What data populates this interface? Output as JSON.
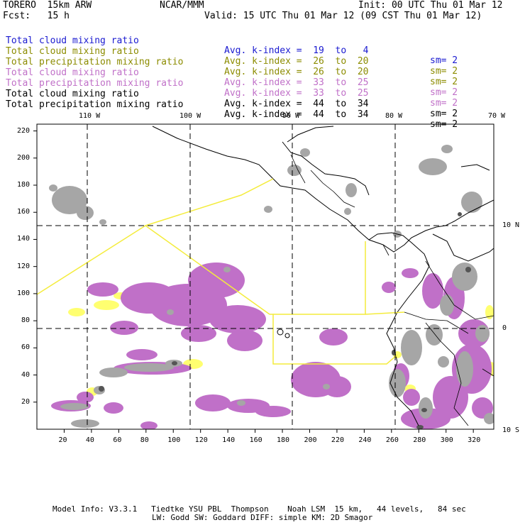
{
  "header": {
    "model": "TORERO  15km ARW",
    "center": "NCAR/MMM",
    "init": "Init: 00 UTC Thu 01 Mar 12",
    "fcst": "Fcst:   15 h",
    "valid": "Valid: 15 UTC Thu 01 Mar 12 (09 CST Thu 01 Mar 12)"
  },
  "legend": [
    {
      "field": "Total cloud mixing ratio",
      "index": "Avg. k-index =  19  to   4",
      "sm": "sm= 2",
      "color": "#1a1ad0"
    },
    {
      "field": "Total cloud mixing ratio",
      "index": "Avg. k-index =  26  to  20",
      "sm": "sm= 2",
      "color": "#8c8c00"
    },
    {
      "field": "Total precipitation mixing ratio",
      "index": "Avg. k-index =  26  to  20",
      "sm": "sm= 2",
      "color": "#8c8c00"
    },
    {
      "field": "Total cloud mixing ratio",
      "index": "Avg. k-index =  33  to  25",
      "sm": "sm= 2",
      "color": "#c070c8"
    },
    {
      "field": "Total precipitation mixing ratio",
      "index": "Avg. k-index =  33  to  25",
      "sm": "sm= 2",
      "color": "#c070c8"
    },
    {
      "field": "Total cloud mixing ratio",
      "index": "Avg. k-index =  44  to  34",
      "sm": "sm= 2",
      "color": "#000000"
    },
    {
      "field": "Total precipitation mixing ratio",
      "index": "Avg. k-index =  44  to  34",
      "sm": "sm= 2",
      "color": "#000000"
    }
  ],
  "axes": {
    "lon_labels": [
      "110 W",
      "100 W",
      "90 W",
      "80 W",
      "70 W"
    ],
    "lat_labels": [
      "10 N",
      "0",
      "10 S"
    ],
    "x_ticks": [
      "20",
      "40",
      "60",
      "80",
      "100",
      "120",
      "140",
      "160",
      "180",
      "200",
      "220",
      "240",
      "260",
      "280",
      "300",
      "320"
    ],
    "y_ticks": [
      "220",
      "200",
      "180",
      "160",
      "140",
      "120",
      "100",
      "80",
      "60",
      "40",
      "20"
    ],
    "x_range": [
      0,
      335
    ],
    "y_range": [
      0,
      225
    ]
  },
  "colors": {
    "cloud_gray": "#a6a6a6",
    "dark_gray": "#555555",
    "purple": "#c070c8",
    "yellow": "#ffff70",
    "flight_track": "#f4ec3c"
  },
  "footer": {
    "line1": "Model Info: V3.3.1   Tiedtke YSU PBL  Thompson    Noah LSM  15 km,   44 levels,   84 sec",
    "line2": "LW: Godd SW: Goddard DIFF: simple KM: 2D Smagor"
  }
}
